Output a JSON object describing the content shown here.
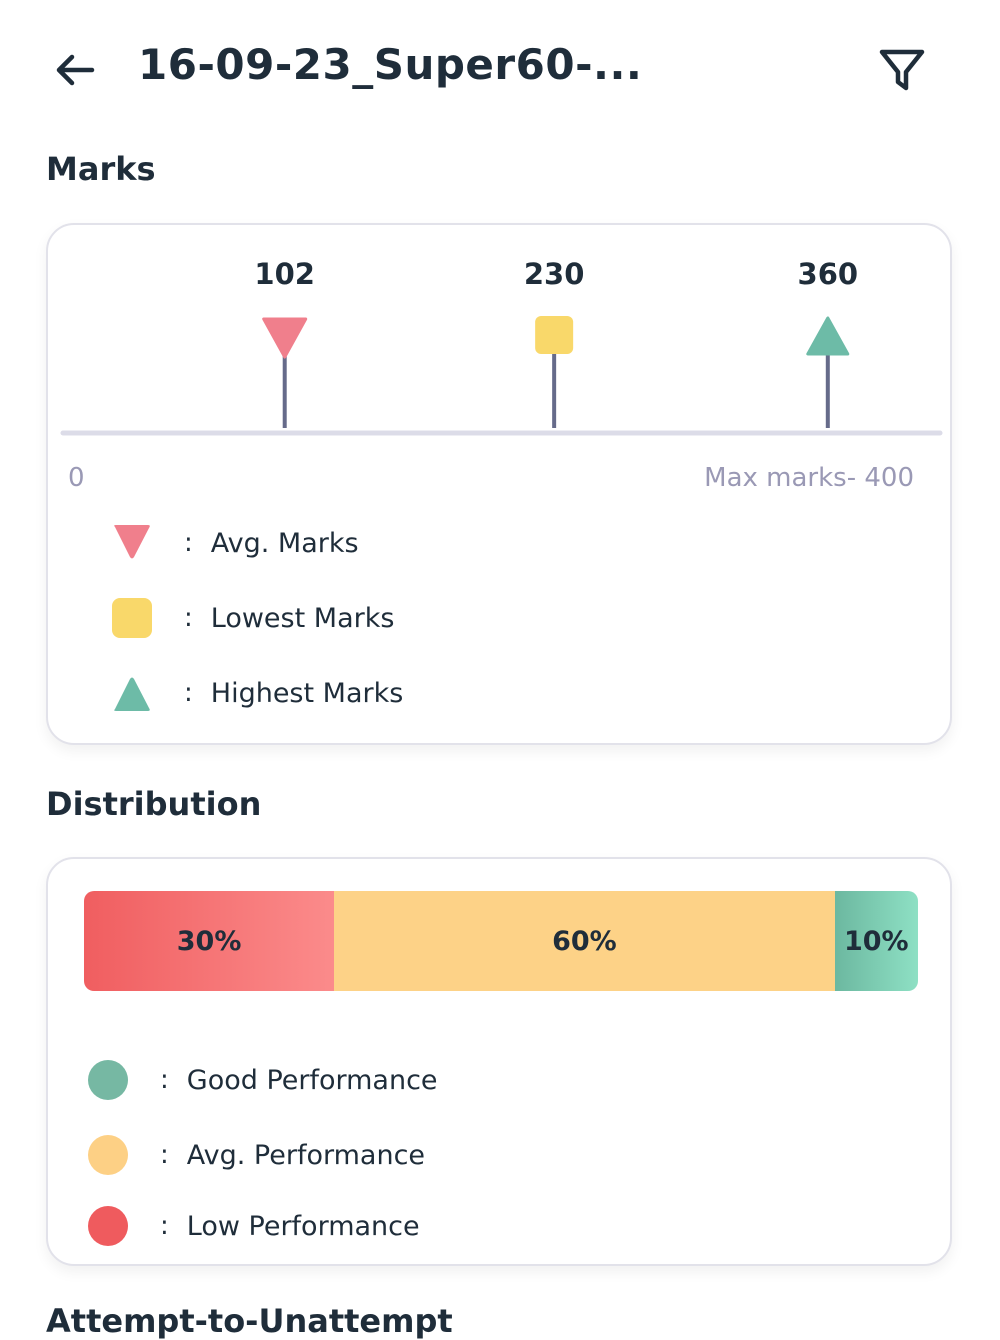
{
  "header": {
    "title": "16-09-23_Super60-..."
  },
  "marks": {
    "section_title": "Marks",
    "scale_min": "0",
    "scale_max_label": "Max marks- 400",
    "max_marks": 400,
    "markers": [
      {
        "key": "avg",
        "value": 102,
        "label": "102",
        "shape": "triangle-down",
        "color": "#f07f8c"
      },
      {
        "key": "lowest",
        "value": 230,
        "label": "230",
        "shape": "square",
        "color": "#f9d86a"
      },
      {
        "key": "highest",
        "value": 360,
        "label": "360",
        "shape": "triangle-up",
        "color": "#6dbba7"
      }
    ],
    "legend": [
      {
        "colon": ":",
        "label": "Avg. Marks"
      },
      {
        "colon": ":",
        "label": "Lowest Marks"
      },
      {
        "colon": ":",
        "label": "Highest Marks"
      }
    ]
  },
  "distribution": {
    "section_title": "Distribution",
    "segments": [
      {
        "key": "low",
        "percent": 30,
        "label": "30%"
      },
      {
        "key": "avg",
        "percent": 60,
        "label": "60%"
      },
      {
        "key": "good",
        "percent": 10,
        "label": "10%"
      }
    ],
    "legend": [
      {
        "colon": ":",
        "label": "Good Performance",
        "color": "#76b8a3"
      },
      {
        "colon": ":",
        "label": "Avg. Performance",
        "color": "#fdd085"
      },
      {
        "colon": ":",
        "label": "Low Performance",
        "color": "#ef5b5e"
      }
    ]
  },
  "next_section": {
    "title": "Attempt-to-Unattempt"
  },
  "colors": {
    "text": "#1f2d3a",
    "muted": "#9a99b5",
    "axis": "#dcdce8",
    "stem": "#666b8a"
  }
}
